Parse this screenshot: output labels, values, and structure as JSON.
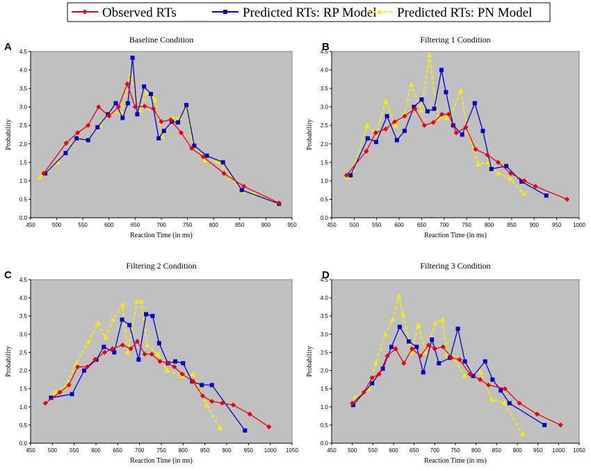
{
  "legend": {
    "position": "top-center",
    "entries": [
      {
        "name": "Observed RTs",
        "color": "#e8000b",
        "marker": "diamond"
      },
      {
        "name": "Predicted RTs: RP Model",
        "color": "#0000c8",
        "marker": "square"
      },
      {
        "name": "Predicted RTs: PN Model",
        "color": "#f5ee00",
        "marker": "triangle",
        "dashed": true
      }
    ]
  },
  "chart_data": [
    {
      "type": "line",
      "panel": "A",
      "title": "Baseline Condition",
      "xlabel": "Reaction Time (in ms)",
      "ylabel": "Probability",
      "xlim": [
        450,
        950
      ],
      "ylim": [
        0,
        4.5
      ],
      "xticks": [
        "450",
        "500",
        "550",
        "600",
        "650",
        "700",
        "750",
        "800",
        "850",
        "900",
        "950"
      ],
      "yticks": [
        "0.0",
        "0.5",
        "1.0",
        "1.5",
        "2.0",
        "2.5",
        "3.0",
        "3.5",
        "4.0",
        "4.5"
      ],
      "series": [
        {
          "name": "Observed RTs",
          "x": [
            475,
            518,
            540,
            560,
            580,
            600,
            618,
            635,
            650,
            668,
            685,
            700,
            718,
            738,
            758,
            780,
            820,
            858,
            925
          ],
          "y": [
            1.2,
            2.02,
            2.3,
            2.5,
            3.0,
            2.75,
            3.0,
            3.62,
            3.0,
            3.02,
            2.95,
            2.6,
            2.65,
            2.3,
            1.88,
            1.65,
            1.2,
            0.85,
            0.4
          ]
        },
        {
          "name": "Predicted RTs: RP Model",
          "x": [
            478,
            517,
            538,
            560,
            578,
            598,
            613,
            626,
            636,
            645,
            654,
            667,
            680,
            695,
            705,
            720,
            732,
            748,
            763,
            787,
            818,
            854,
            925
          ],
          "y": [
            1.2,
            1.75,
            2.15,
            2.1,
            2.45,
            2.8,
            3.1,
            2.7,
            3.1,
            4.33,
            2.8,
            3.55,
            3.35,
            2.15,
            2.35,
            2.6,
            2.58,
            3.05,
            1.95,
            1.68,
            1.5,
            0.75,
            0.38
          ]
        },
        {
          "name": "Predicted RTs: PN Model",
          "x": [
            468,
            502,
            540,
            558,
            583,
            603,
            623,
            641,
            660,
            672,
            688,
            702,
            722,
            736,
            748,
            761,
            783,
            808,
            832,
            856,
            878,
            922
          ],
          "y": [
            1.1,
            1.5,
            2.2,
            2.1,
            2.5,
            2.85,
            2.85,
            3.9,
            2.9,
            3.4,
            3.2,
            2.2,
            2.7,
            2.7,
            3.0,
            1.9,
            1.55,
            1.52,
            1.1,
            0.72,
            0.65,
            0.4
          ]
        }
      ]
    },
    {
      "type": "line",
      "panel": "B",
      "title": "Filtering 1 Condition",
      "xlabel": "Reaction Time (in ms)",
      "ylabel": "Probability",
      "xlim": [
        450,
        1000
      ],
      "ylim": [
        0,
        4.5
      ],
      "xticks": [
        "450",
        "500",
        "550",
        "600",
        "650",
        "700",
        "750",
        "800",
        "850",
        "900",
        "950",
        "1000"
      ],
      "yticks": [
        "0.0",
        "0.5",
        "1.0",
        "1.5",
        "2.0",
        "2.5",
        "3.0",
        "3.5",
        "4.0",
        "4.5"
      ],
      "series": [
        {
          "name": "Observed RTs",
          "x": [
            483,
            527,
            548,
            570,
            590,
            612,
            635,
            656,
            676,
            695,
            710,
            727,
            748,
            770,
            796,
            820,
            848,
            878,
            903,
            973
          ],
          "y": [
            1.15,
            1.8,
            2.3,
            2.4,
            2.6,
            2.75,
            2.95,
            2.5,
            2.58,
            2.8,
            2.8,
            2.3,
            2.45,
            1.85,
            1.7,
            1.5,
            1.2,
            1.0,
            0.85,
            0.5
          ]
        },
        {
          "name": "Predicted RTs: RP Model",
          "x": [
            492,
            530,
            549,
            573,
            595,
            612,
            633,
            650,
            663,
            678,
            694,
            704,
            720,
            740,
            768,
            786,
            805,
            838,
            872,
            927
          ],
          "y": [
            1.15,
            2.15,
            2.05,
            2.75,
            2.1,
            2.35,
            3.0,
            3.2,
            2.88,
            2.95,
            4.0,
            3.4,
            2.5,
            2.25,
            3.1,
            2.35,
            1.32,
            1.4,
            0.98,
            0.6
          ]
        },
        {
          "name": "Predicted RTs: PN Model",
          "x": [
            485,
            497,
            529,
            549,
            570,
            591,
            611,
            627,
            649,
            667,
            686,
            705,
            716,
            737,
            752,
            776,
            797,
            821,
            847,
            877
          ],
          "y": [
            1.1,
            1.3,
            2.5,
            2.25,
            3.15,
            2.5,
            2.8,
            3.6,
            2.9,
            4.4,
            2.7,
            2.7,
            2.8,
            3.45,
            2.3,
            1.45,
            1.5,
            1.2,
            1.05,
            0.65
          ]
        }
      ]
    },
    {
      "type": "line",
      "panel": "C",
      "title": "Filtering 2 Condition",
      "xlabel": "Reaction Time (in ms)",
      "ylabel": "Probability",
      "xlim": [
        450,
        1050
      ],
      "ylim": [
        0,
        4.5
      ],
      "xticks": [
        "450",
        "500",
        "550",
        "600",
        "650",
        "700",
        "750",
        "800",
        "850",
        "900",
        "950",
        "1000",
        "1050"
      ],
      "yticks": [
        "0.0",
        "0.5",
        "1.0",
        "1.5",
        "2.0",
        "2.5",
        "3.0",
        "3.5",
        "4.0",
        "4.5"
      ],
      "series": [
        {
          "name": "Observed RTs",
          "x": [
            484,
            517,
            538,
            558,
            580,
            598,
            620,
            638,
            661,
            680,
            695,
            712,
            728,
            747,
            765,
            780,
            798,
            823,
            845,
            866,
            890,
            915,
            953,
            997
          ],
          "y": [
            1.1,
            1.4,
            1.6,
            2.1,
            2.1,
            2.3,
            2.5,
            2.6,
            2.7,
            2.6,
            2.8,
            2.45,
            2.45,
            2.25,
            2.2,
            2.1,
            1.9,
            1.7,
            1.3,
            1.15,
            1.1,
            1.05,
            0.8,
            0.45
          ]
        },
        {
          "name": "Predicted RTs: RP Model",
          "x": [
            497,
            545,
            573,
            601,
            618,
            642,
            660,
            677,
            698,
            715,
            730,
            745,
            765,
            782,
            800,
            821,
            843,
            866,
            942
          ],
          "y": [
            1.25,
            1.35,
            2.0,
            2.3,
            2.65,
            2.5,
            3.4,
            3.25,
            2.3,
            3.55,
            3.5,
            2.75,
            2.2,
            2.25,
            2.2,
            1.7,
            1.6,
            1.6,
            0.35
          ]
        },
        {
          "name": "Predicted RTs: PN Model",
          "x": [
            505,
            530,
            555,
            583,
            605,
            622,
            639,
            661,
            673,
            694,
            704,
            718,
            742,
            763,
            797,
            823,
            854,
            885
          ],
          "y": [
            1.4,
            1.55,
            2.2,
            2.8,
            3.3,
            2.9,
            3.4,
            3.8,
            2.5,
            3.9,
            3.9,
            2.7,
            2.45,
            2.0,
            1.85,
            1.9,
            1.05,
            0.42
          ]
        }
      ]
    },
    {
      "type": "line",
      "panel": "D",
      "title": "Filtering 3 Condition",
      "xlabel": "Reaction Time (in ms)",
      "ylabel": "Probability",
      "xlim": [
        450,
        1050
      ],
      "ylim": [
        0,
        4.5
      ],
      "xticks": [
        "450",
        "500",
        "550",
        "600",
        "650",
        "700",
        "750",
        "800",
        "850",
        "900",
        "950",
        "1000",
        "1050"
      ],
      "yticks": [
        "0.0",
        "0.5",
        "1.0",
        "1.5",
        "2.0",
        "2.5",
        "3.0",
        "3.5",
        "4.0",
        "4.5"
      ],
      "series": [
        {
          "name": "Observed RTs",
          "x": [
            500,
            528,
            548,
            565,
            585,
            605,
            625,
            645,
            665,
            685,
            700,
            720,
            740,
            760,
            785,
            810,
            830,
            870,
            905,
            948,
            1005
          ],
          "y": [
            1.1,
            1.4,
            1.8,
            1.9,
            2.4,
            2.6,
            2.2,
            2.6,
            2.4,
            2.7,
            2.6,
            2.65,
            2.35,
            2.3,
            1.9,
            1.75,
            1.6,
            1.5,
            1.1,
            0.8,
            0.5
          ]
        },
        {
          "name": "Predicted RTs: RP Model",
          "x": [
            502,
            548,
            574,
            595,
            615,
            637,
            656,
            672,
            693,
            710,
            737,
            756,
            773,
            793,
            822,
            840,
            860,
            881,
            966
          ],
          "y": [
            1.05,
            1.65,
            2.05,
            2.65,
            3.2,
            2.8,
            2.65,
            1.95,
            2.85,
            2.2,
            2.35,
            3.15,
            2.25,
            1.85,
            2.25,
            1.75,
            1.45,
            1.1,
            0.5
          ]
        },
        {
          "name": "Predicted RTs: PN Model",
          "x": [
            507,
            540,
            557,
            580,
            598,
            613,
            623,
            643,
            660,
            678,
            701,
            719,
            730,
            746,
            772,
            811,
            838,
            869,
            913
          ],
          "y": [
            1.25,
            1.5,
            2.2,
            3.0,
            3.4,
            4.05,
            3.55,
            2.5,
            3.25,
            2.5,
            3.3,
            3.4,
            2.45,
            2.35,
            1.85,
            1.95,
            1.2,
            1.1,
            0.25
          ]
        }
      ]
    }
  ]
}
